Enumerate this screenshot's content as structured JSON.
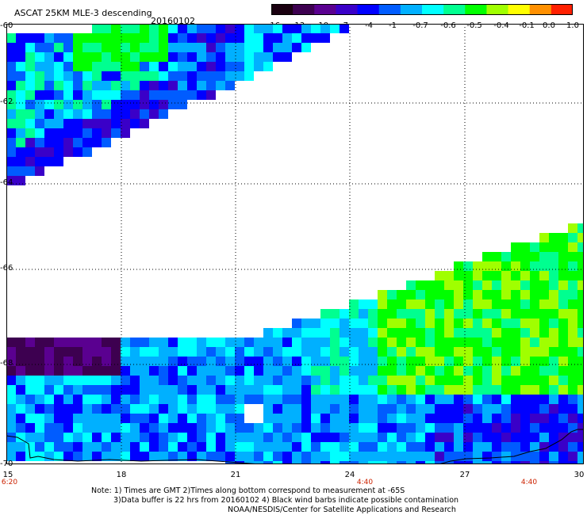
{
  "header": {
    "title": "ASCAT 25KM MLE-3 descending",
    "date": "20160102"
  },
  "colorbar": {
    "labels": [
      "-16",
      "-13",
      "-10",
      "-7",
      "-4",
      "-1",
      "-0.7",
      "-0.6",
      "-0.5",
      "-0.4",
      "-0.1",
      "0.0",
      "1.0"
    ],
    "colors": [
      "#1a0010",
      "#3d0050",
      "#5a0090",
      "#3a00c8",
      "#0000ff",
      "#005cff",
      "#00b0ff",
      "#00ffff",
      "#00ff90",
      "#00ff00",
      "#a0ff00",
      "#ffff00",
      "#ff9000",
      "#ff2000"
    ]
  },
  "axes": {
    "latitudes": [
      "-60",
      "-62",
      "-64",
      "-66",
      "-68",
      "-70"
    ],
    "longitudes": [
      "15",
      "18",
      "21",
      "24",
      "27",
      "30"
    ],
    "times": [
      "6:20",
      "4:40",
      "4:40"
    ]
  },
  "notes": [
    "Note: 1) Times are GMT 2)Times along bottom correspond to measurement at -65S",
    "3)Data buffer is 22 hrs from 20160102 4) Black wind barbs indicate possible contamination",
    "NOAA/NESDIS/Center for Satellite Applications and Research"
  ]
}
